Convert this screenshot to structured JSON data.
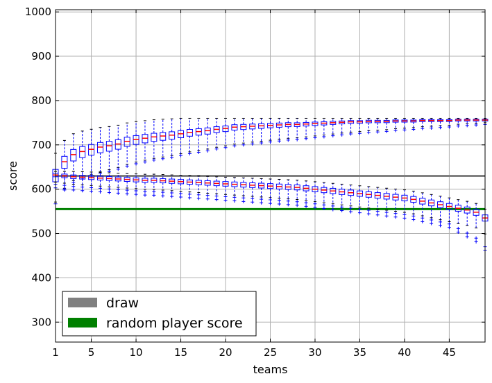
{
  "chart_data": {
    "type": "box",
    "title": "",
    "xlabel": "teams",
    "ylabel": "score",
    "xlim": [
      1,
      49
    ],
    "ylim": [
      255,
      1005
    ],
    "xticks": [
      1,
      5,
      10,
      15,
      20,
      25,
      30,
      35,
      40,
      45
    ],
    "xtick_labels": [
      "1",
      "5",
      "10",
      "15",
      "20",
      "25",
      "30",
      "35",
      "40",
      "45"
    ],
    "yticks": [
      300,
      400,
      500,
      600,
      700,
      800,
      900,
      1000
    ],
    "ytick_labels": [
      "300",
      "400",
      "500",
      "600",
      "700",
      "800",
      "900",
      "1000"
    ],
    "grid": true,
    "legend_position": "bottom-left",
    "reference_lines": [
      {
        "name": "draw",
        "value": 630,
        "color": "#808080"
      },
      {
        "name": "random player score",
        "value": 555,
        "color": "#008000"
      }
    ],
    "box_color": "#0000ff",
    "median_color": "#ff0000",
    "series": [
      {
        "group": "upper",
        "x": [
          1,
          2,
          3,
          4,
          5,
          6,
          7,
          8,
          9,
          10,
          11,
          12,
          13,
          14,
          15,
          16,
          17,
          18,
          19,
          20,
          21,
          22,
          23,
          24,
          25,
          26,
          27,
          28,
          29,
          30,
          31,
          32,
          33,
          34,
          35,
          36,
          37,
          38,
          39,
          40,
          41,
          42,
          43,
          44,
          45,
          46,
          47,
          48,
          49
        ],
        "median": [
          632,
          662,
          678,
          685,
          690,
          695,
          698,
          702,
          708,
          712,
          715,
          718,
          720,
          722,
          725,
          728,
          730,
          732,
          735,
          737,
          740,
          741,
          742,
          743,
          744,
          745,
          746,
          746,
          747,
          748,
          749,
          750,
          751,
          752,
          752,
          753,
          753,
          753,
          754,
          754,
          754,
          755,
          755,
          755,
          755,
          756,
          756,
          756,
          756
        ]
      },
      {
        "group": "lower",
        "x": [
          1,
          2,
          3,
          4,
          5,
          6,
          7,
          8,
          9,
          10,
          11,
          12,
          13,
          14,
          15,
          16,
          17,
          18,
          19,
          20,
          21,
          22,
          23,
          24,
          25,
          26,
          27,
          28,
          29,
          30,
          31,
          32,
          33,
          34,
          35,
          36,
          37,
          38,
          39,
          40,
          41,
          42,
          43,
          44,
          45,
          46,
          47,
          48,
          49
        ],
        "median": [
          632,
          630,
          628,
          627,
          626,
          625,
          624,
          623,
          622,
          621,
          620,
          620,
          619,
          618,
          617,
          616,
          615,
          614,
          613,
          612,
          611,
          610,
          609,
          608,
          607,
          606,
          605,
          604,
          602,
          600,
          598,
          596,
          594,
          592,
          590,
          588,
          586,
          584,
          582,
          580,
          577,
          573,
          569,
          565,
          561,
          557,
          553,
          548,
          535
        ]
      }
    ]
  },
  "legend": {
    "items": [
      {
        "label": "draw",
        "color": "#808080"
      },
      {
        "label": "random player score",
        "color": "#008000"
      }
    ]
  }
}
